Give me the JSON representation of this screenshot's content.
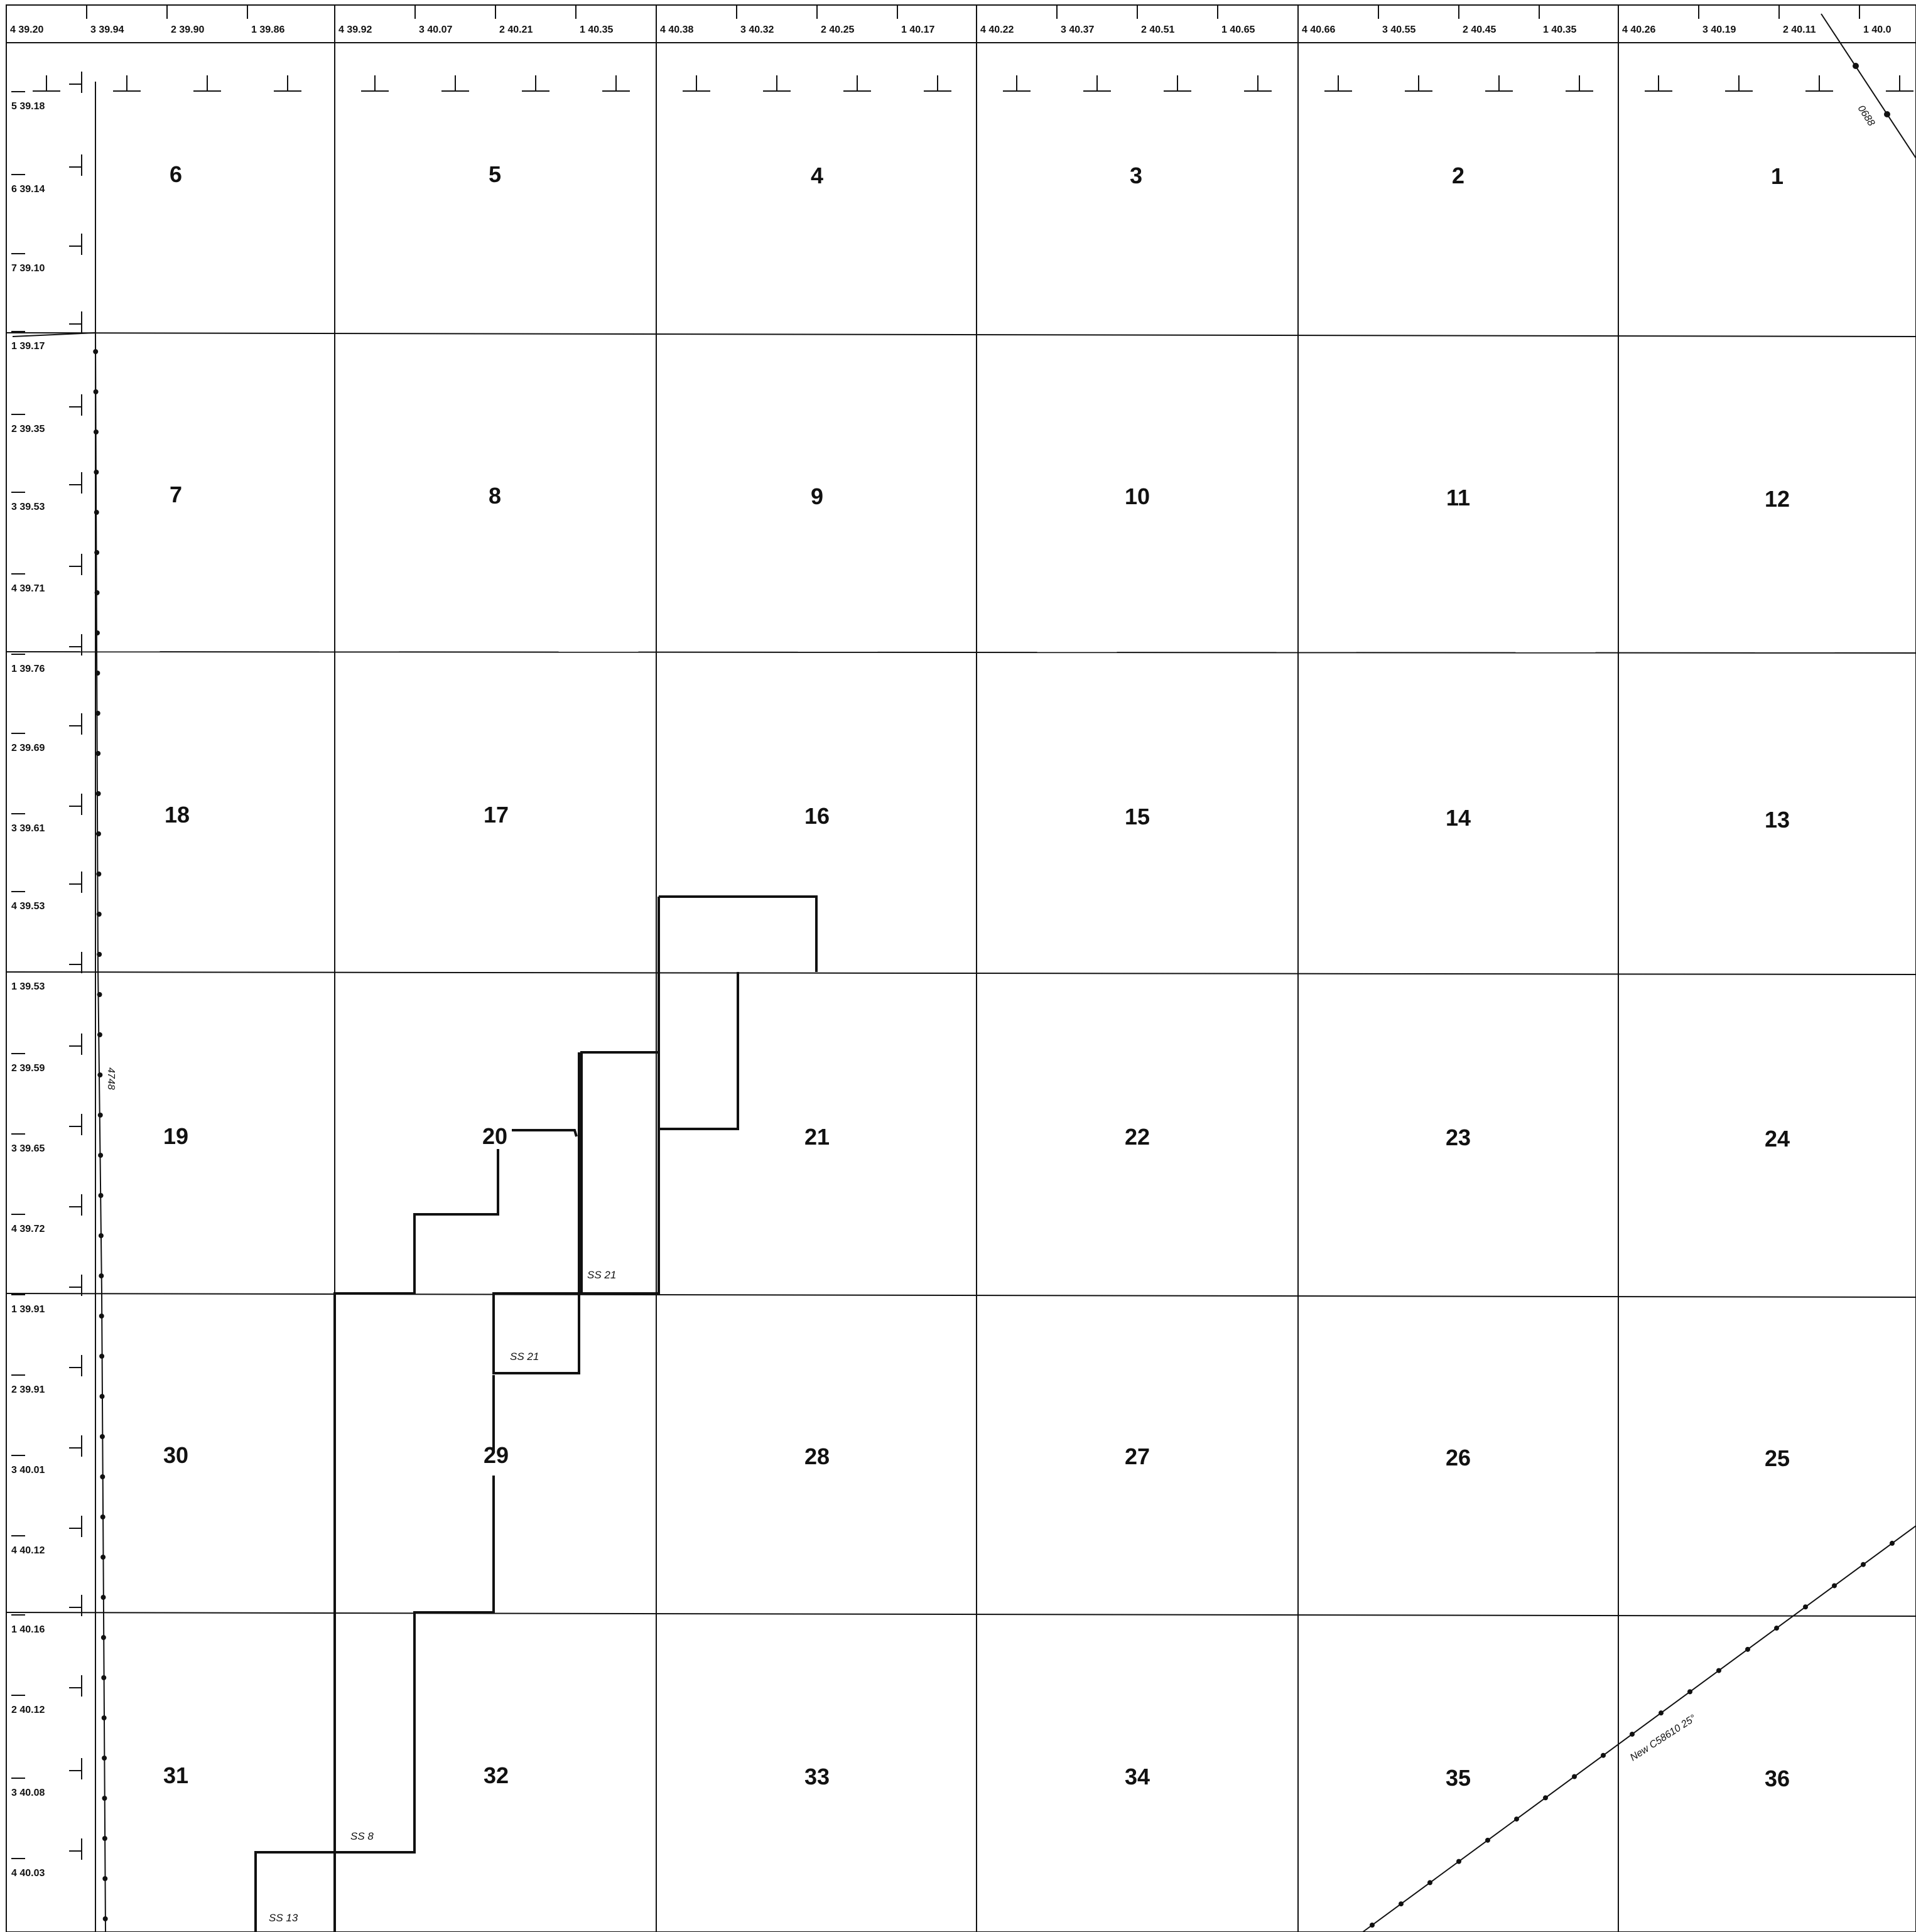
{
  "map": {
    "colors": {
      "ink": "#111111",
      "paper": "#ffffff"
    },
    "sections": [
      {
        "number": "6"
      },
      {
        "number": "5"
      },
      {
        "number": "4"
      },
      {
        "number": "3"
      },
      {
        "number": "2"
      },
      {
        "number": "1"
      },
      {
        "number": "7"
      },
      {
        "number": "8"
      },
      {
        "number": "9"
      },
      {
        "number": "10"
      },
      {
        "number": "11"
      },
      {
        "number": "12"
      },
      {
        "number": "18"
      },
      {
        "number": "17"
      },
      {
        "number": "16"
      },
      {
        "number": "15"
      },
      {
        "number": "14"
      },
      {
        "number": "13"
      },
      {
        "number": "19"
      },
      {
        "number": "20"
      },
      {
        "number": "21"
      },
      {
        "number": "22"
      },
      {
        "number": "23"
      },
      {
        "number": "24"
      },
      {
        "number": "30"
      },
      {
        "number": "29"
      },
      {
        "number": "28"
      },
      {
        "number": "27"
      },
      {
        "number": "26"
      },
      {
        "number": "25"
      },
      {
        "number": "31"
      },
      {
        "number": "32"
      },
      {
        "number": "33"
      },
      {
        "number": "34"
      },
      {
        "number": "35"
      },
      {
        "number": "36"
      }
    ],
    "top_lots": [
      "4 39.20",
      "3 39.94",
      "2 39.90",
      "1 39.86",
      "4 39.92",
      "3 40.07",
      "2 40.21",
      "1 40.35",
      "4 40.38",
      "3 40.32",
      "2 40.25",
      "1 40.17",
      "4 40.22",
      "3 40.37",
      "2 40.51",
      "1 40.65",
      "4 40.66",
      "3 40.55",
      "2 40.45",
      "1 40.35",
      "4 40.26",
      "3 40.19",
      "2 40.11",
      "1 40.0"
    ],
    "left_lots": [
      "5 39.18",
      "6 39.14",
      "7 39.10",
      "1 39.17",
      "2 39.35",
      "3 39.53",
      "4 39.71",
      "1 39.76",
      "2 39.69",
      "3 39.61",
      "4 39.53",
      "1 39.53",
      "2 39.59",
      "3 39.65",
      "4 39.72",
      "1 39.91",
      "2 39.91",
      "3 40.01",
      "4 40.12",
      "1 40.16",
      "2 40.12",
      "3 40.08",
      "4 40.03"
    ],
    "parcel_labels": [
      "SS 21",
      "SS 21",
      "SS 8",
      "SS 13"
    ],
    "line_labels": {
      "west_line": "4748",
      "ne_line": "0688",
      "se_line": "New C58610 25°"
    }
  }
}
